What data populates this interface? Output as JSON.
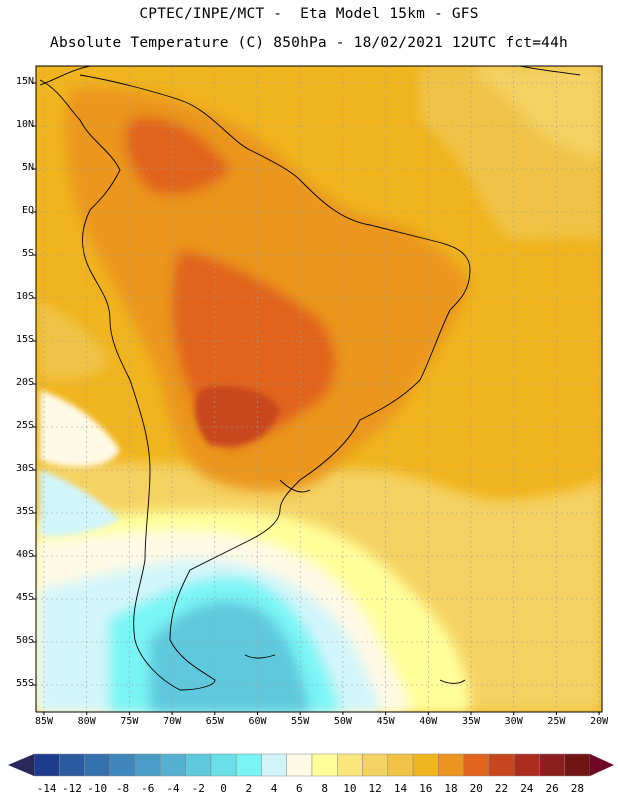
{
  "header": {
    "line1": "CPTEC/INPE/MCT -  Eta Model 15km - GFS",
    "line2": "Absolute Temperature (C) 850hPa - 18/02/2021 12UTC fct=44h"
  },
  "latitude_labels": [
    "15N",
    "10N",
    "5N",
    "EQ",
    "5S",
    "10S",
    "15S",
    "20S",
    "25S",
    "30S",
    "35S",
    "40S",
    "45S",
    "50S",
    "55S"
  ],
  "longitude_labels": [
    "85W",
    "80W",
    "75W",
    "70W",
    "65W",
    "60W",
    "55W",
    "50W",
    "45W",
    "40W",
    "35W",
    "30W",
    "25W",
    "20W"
  ],
  "colorbar": {
    "labels": [
      "-14",
      "-12",
      "-10",
      "-8",
      "-6",
      "-4",
      "-2",
      "0",
      "2",
      "4",
      "6",
      "8",
      "10",
      "12",
      "14",
      "16",
      "18",
      "20",
      "22",
      "24",
      "26",
      "28"
    ],
    "colors": [
      "#1e3c8c",
      "#2a5aa0",
      "#3571ae",
      "#3f86bb",
      "#4a9bc6",
      "#55b0d2",
      "#5ec8dd",
      "#6adfe8",
      "#7af5f5",
      "#d2f5fa",
      "#fffae6",
      "#ffff9b",
      "#fae67d",
      "#f5d264",
      "#f0c346",
      "#f0b41e",
      "#eb961e",
      "#e1641e",
      "#c8461e",
      "#aa2d1e",
      "#8c1e1e",
      "#731414"
    ],
    "under_color": "#28285a",
    "over_color": "#6e0a28"
  },
  "colors": {
    "land_outline": "#000000",
    "grid": "#a0a0a0",
    "frame": "#000000"
  }
}
